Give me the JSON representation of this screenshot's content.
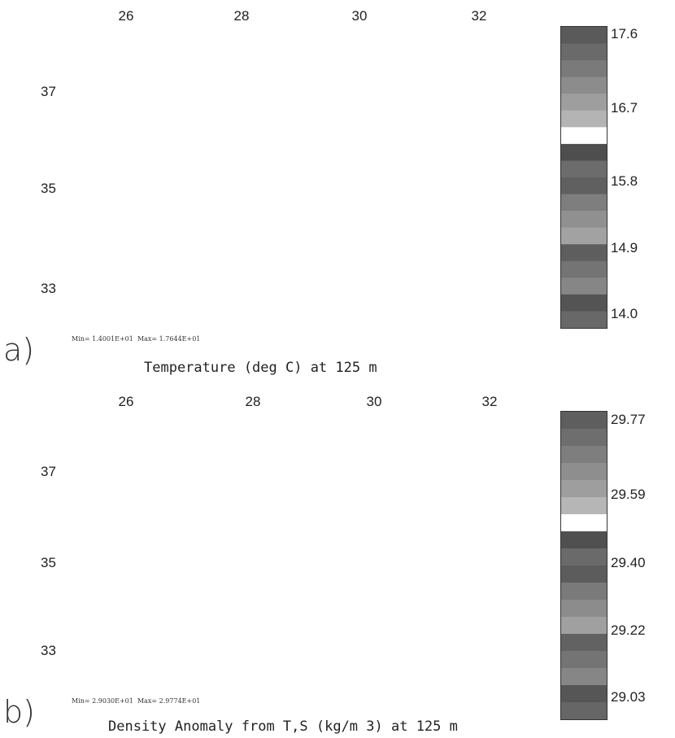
{
  "panels": [
    {
      "letter": "a)",
      "caption": "Temperature (deg C) at 125 m",
      "minmax": "Min= 1.4001E+01  Max= 1.7644E+01",
      "lon_labels": [
        "26",
        "28",
        "30",
        "32"
      ],
      "lat_labels": [
        "37",
        "35",
        "33"
      ],
      "colorbar_labels": [
        "17.6",
        "16.7",
        "15.8",
        "14.9",
        "14.0"
      ]
    },
    {
      "letter": "b)",
      "caption": "Density Anomaly from T,S (kg/m 3) at 125 m",
      "minmax": "Min= 2.9030E+01  Max= 2.9774E+01",
      "lon_labels": [
        "26",
        "28",
        "30",
        "32"
      ],
      "lat_labels": [
        "37",
        "35",
        "33"
      ],
      "colorbar_labels": [
        "29.77",
        "29.59",
        "29.40",
        "29.22",
        "29.03"
      ]
    }
  ],
  "colors": {
    "land_dark": "#3a3a3a",
    "sea_stipple": "#cfcfcf",
    "field_mid": "#6f6f6f",
    "field_light": "#bdbdbd",
    "highlight": "#ffffff"
  }
}
